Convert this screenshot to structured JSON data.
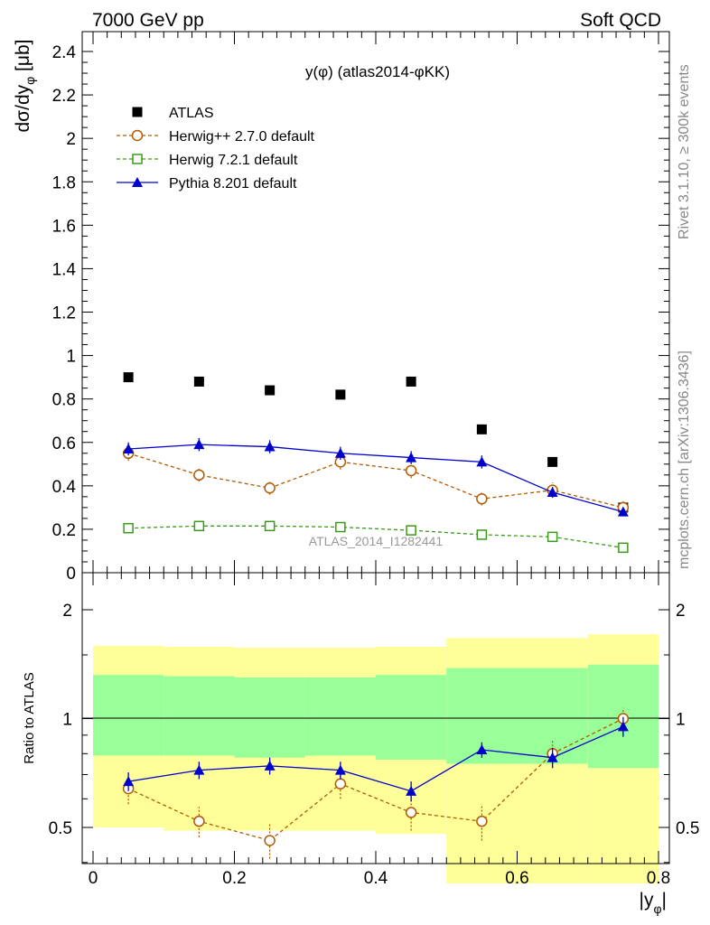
{
  "header": {
    "left": "7000 GeV pp",
    "right": "Soft QCD"
  },
  "side_labels": {
    "rivet": "Rivet 3.1.10, ≥ 300k events",
    "mcplots": "mcplots.cern.ch [arXiv:1306.3436]"
  },
  "chart_data": [
    {
      "type": "scatter",
      "title": "y(φ) (atlas2014-φKK)",
      "watermark": "ATLAS_2014_I1282441",
      "ylabel": "dσ/dy_φ [μb]",
      "xlabel": "|y_φ|",
      "xlim": [
        0,
        0.8
      ],
      "ylim": [
        0,
        2.5
      ],
      "legend_position": "top-left",
      "x": [
        0.05,
        0.15,
        0.25,
        0.35,
        0.45,
        0.55,
        0.65,
        0.75
      ],
      "yticks": [
        0,
        0.2,
        0.4,
        0.6,
        0.8,
        1,
        1.2,
        1.4,
        1.6,
        1.8,
        2,
        2.2,
        2.4
      ],
      "ytick_labels": [
        "0",
        "0.2",
        "0.4",
        "0.6",
        "0.8",
        "1",
        "1.2",
        "1.4",
        "1.6",
        "1.8",
        "2",
        "2.2",
        "2.4"
      ],
      "series": [
        {
          "name": "ATLAS",
          "marker": "square-filled",
          "color": "#000000",
          "line": "none",
          "values": [
            0.9,
            0.88,
            0.84,
            0.82,
            0.88,
            0.66,
            0.51,
            0.3
          ]
        },
        {
          "name": "Herwig++ 2.7.0 default",
          "marker": "circle-open",
          "color": "#b35a00",
          "line": "dashed",
          "values": [
            0.55,
            0.45,
            0.39,
            0.51,
            0.47,
            0.34,
            0.38,
            0.3
          ],
          "errors": [
            0.035,
            0.03,
            0.03,
            0.035,
            0.035,
            0.03,
            0.035,
            0.03
          ]
        },
        {
          "name": "Herwig 7.2.1 default",
          "marker": "square-open",
          "color": "#3a9a1a",
          "line": "dashed",
          "values": [
            0.205,
            0.215,
            0.215,
            0.21,
            0.195,
            0.175,
            0.165,
            0.115
          ]
        },
        {
          "name": "Pythia 8.201 default",
          "marker": "triangle-filled",
          "color": "#0000cc",
          "line": "solid",
          "values": [
            0.57,
            0.59,
            0.58,
            0.55,
            0.53,
            0.51,
            0.37,
            0.28
          ],
          "errors": [
            0.03,
            0.03,
            0.03,
            0.03,
            0.03,
            0.03,
            0.025,
            0.02
          ]
        }
      ]
    },
    {
      "type": "line",
      "ylabel": "Ratio to ATLAS",
      "xlabel": "|y_φ|",
      "xlim": [
        0,
        0.8
      ],
      "ylim": [
        0.35,
        2.25
      ],
      "xticks": [
        0,
        0.2,
        0.4,
        0.6,
        0.8
      ],
      "xtick_labels": [
        "0",
        "0.2",
        "0.4",
        "0.6",
        "0.8"
      ],
      "yticks": [
        0.5,
        1,
        2
      ],
      "ytick_labels": [
        "0.5",
        "1",
        "2"
      ],
      "bands": {
        "bins": [
          [
            0.0,
            0.1
          ],
          [
            0.1,
            0.2
          ],
          [
            0.2,
            0.3
          ],
          [
            0.3,
            0.4
          ],
          [
            0.4,
            0.5
          ],
          [
            0.5,
            0.6
          ],
          [
            0.6,
            0.7
          ],
          [
            0.7,
            0.8
          ]
        ],
        "yellow": [
          [
            0.5,
            1.59
          ],
          [
            0.49,
            1.58
          ],
          [
            0.49,
            1.57
          ],
          [
            0.49,
            1.57
          ],
          [
            0.48,
            1.58
          ],
          [
            0.35,
            1.67
          ],
          [
            0.35,
            1.67
          ],
          [
            0.35,
            1.71
          ]
        ],
        "green": [
          [
            0.79,
            1.32
          ],
          [
            0.79,
            1.31
          ],
          [
            0.78,
            1.3
          ],
          [
            0.79,
            1.3
          ],
          [
            0.77,
            1.32
          ],
          [
            0.75,
            1.38
          ],
          [
            0.75,
            1.38
          ],
          [
            0.73,
            1.41
          ]
        ],
        "yellow_color": "#ffff99",
        "green_color": "#99ff99"
      },
      "x": [
        0.05,
        0.15,
        0.25,
        0.35,
        0.45,
        0.55,
        0.65,
        0.75
      ],
      "series": [
        {
          "name": "Herwig++ 2.7.0 default",
          "marker": "circle-open",
          "color": "#b35a00",
          "line": "dashed",
          "values": [
            0.64,
            0.52,
            0.46,
            0.66,
            0.55,
            0.52,
            0.8,
            1.0
          ],
          "errors": [
            0.06,
            0.05,
            0.05,
            0.06,
            0.06,
            0.06,
            0.07,
            0.07
          ]
        },
        {
          "name": "Pythia 8.201 default",
          "marker": "triangle-filled",
          "color": "#0000cc",
          "line": "solid",
          "values": [
            0.67,
            0.72,
            0.74,
            0.72,
            0.63,
            0.82,
            0.78,
            0.95
          ],
          "errors": [
            0.04,
            0.04,
            0.04,
            0.04,
            0.04,
            0.04,
            0.05,
            0.06
          ]
        }
      ]
    }
  ]
}
